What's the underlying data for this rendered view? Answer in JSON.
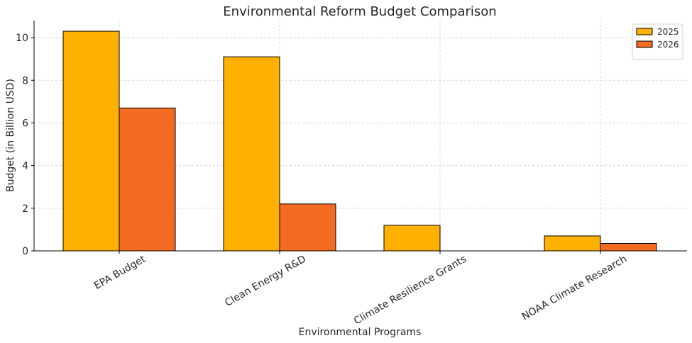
{
  "chart_data": {
    "type": "bar",
    "title": "Environmental Reform Budget Comparison",
    "xlabel": "Environmental Programs",
    "ylabel": "Budget (in Billion USD)",
    "categories": [
      "EPA Budget",
      "Clean Energy R&D",
      "Climate Resilience Grants",
      "NOAA Climate Research"
    ],
    "series": [
      {
        "name": "2025",
        "values": [
          10.3,
          9.1,
          1.2,
          0.7
        ],
        "color": "#FFB000"
      },
      {
        "name": "2026",
        "values": [
          6.7,
          2.2,
          0,
          0.35
        ],
        "color": "#F26B21"
      }
    ],
    "ylim": [
      0,
      10.8
    ],
    "yticks": [
      0,
      2,
      4,
      6,
      8,
      10
    ],
    "grid": true,
    "legend_position": "top-right"
  }
}
